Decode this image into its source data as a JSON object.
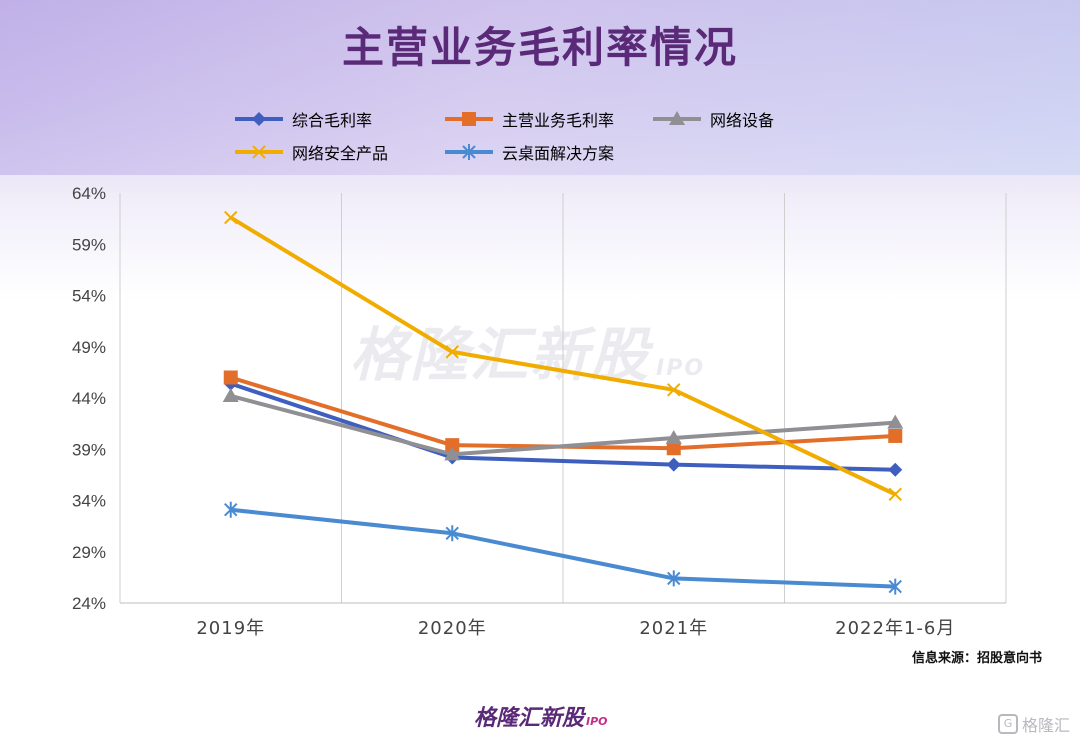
{
  "page": {
    "title": "主营业务毛利率情况",
    "source": "信息来源：招股意向书",
    "brand": "格隆汇新股",
    "brand_tag": "IPO",
    "watermark": "格隆汇新股",
    "watermark_tag": "IPO",
    "corner_logo": "格隆汇",
    "corner_glyph": "G"
  },
  "colors": {
    "综合毛利率": "#3f5fbf",
    "主营业务毛利率": "#e36e2a",
    "网络设备": "#8f8f94",
    "网络安全产品": "#f0ac00",
    "云桌面解决方案": "#4a8ad1"
  },
  "chart_data": {
    "type": "line",
    "categories": [
      "2019年",
      "2020年",
      "2021年",
      "2022年1-6月"
    ],
    "ylim": [
      24,
      64
    ],
    "yticks": [
      "64%",
      "59%",
      "54%",
      "49%",
      "44%",
      "39%",
      "34%",
      "29%",
      "24%"
    ],
    "ytick_values": [
      64,
      59,
      54,
      49,
      44,
      39,
      34,
      29,
      24
    ],
    "grid": "vertical",
    "legend_position": "top",
    "series": [
      {
        "name": "综合毛利率",
        "marker": "diamond",
        "values": [
          45.4,
          38.2,
          37.5,
          37.0
        ]
      },
      {
        "name": "主营业务毛利率",
        "marker": "square",
        "values": [
          46.0,
          39.4,
          39.1,
          40.3
        ]
      },
      {
        "name": "网络设备",
        "marker": "triangle",
        "values": [
          44.2,
          38.5,
          40.1,
          41.6
        ]
      },
      {
        "name": "网络安全产品",
        "marker": "x",
        "values": [
          61.6,
          48.5,
          44.8,
          34.6
        ]
      },
      {
        "name": "云桌面解决方案",
        "marker": "star",
        "values": [
          33.1,
          30.8,
          26.4,
          25.6
        ]
      }
    ]
  }
}
